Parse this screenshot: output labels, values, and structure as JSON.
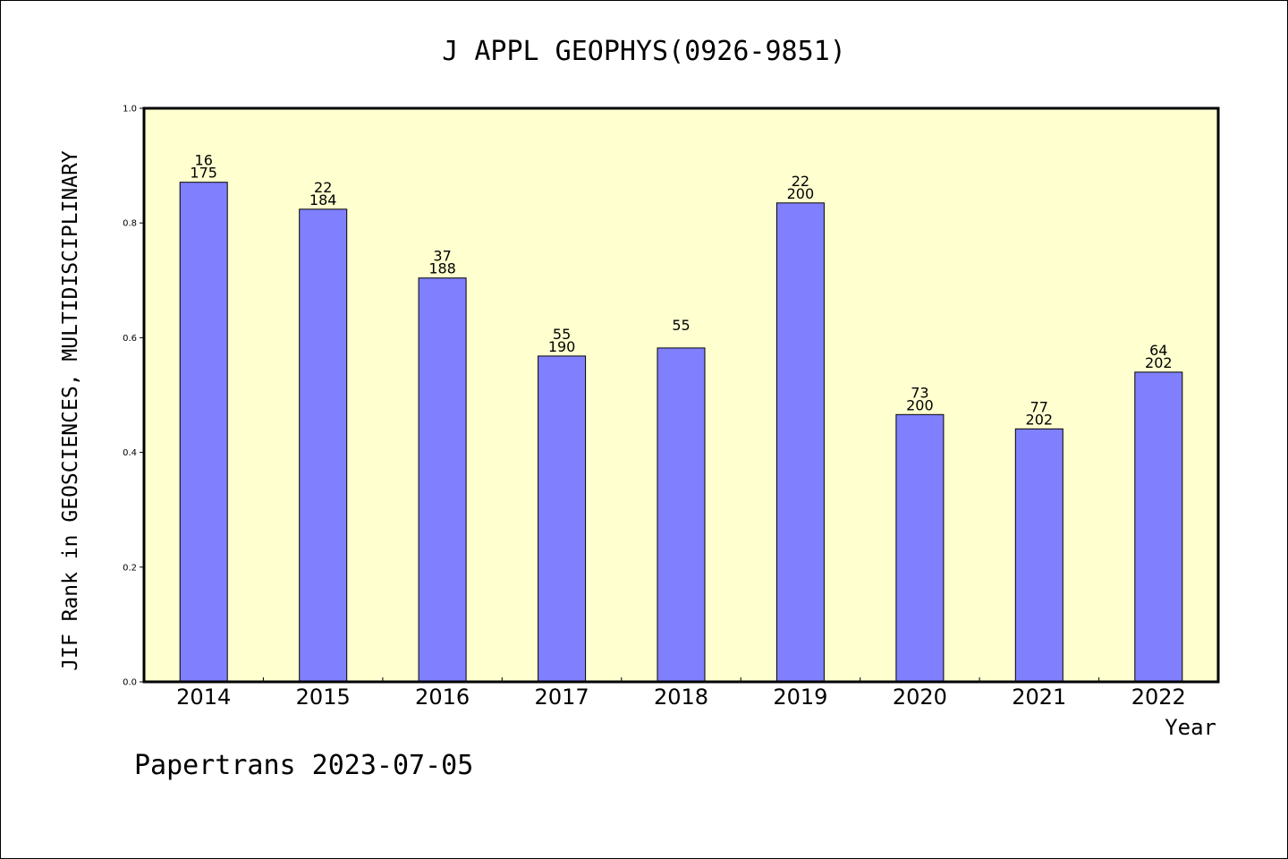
{
  "chart_data": {
    "type": "bar",
    "title": "J APPL GEOPHYS(0926-9851)",
    "xlabel": "Year",
    "ylabel": "JIF Rank in GEOSCIENCES, MULTIDISCIPLINARY",
    "ylim": [
      0,
      1
    ],
    "yticks": [
      "0.0",
      "0.2",
      "0.4",
      "0.6",
      "0.8",
      "1.0"
    ],
    "grid": false,
    "categories": [
      "2014",
      "2015",
      "2016",
      "2017",
      "2018",
      "2019",
      "2020",
      "2021",
      "2022"
    ],
    "values": [
      0.871,
      0.824,
      0.704,
      0.568,
      0.582,
      0.835,
      0.466,
      0.441,
      0.54
    ],
    "rank": [
      "16",
      "22",
      "37",
      "55",
      "55",
      "22",
      "73",
      "77",
      "64"
    ],
    "total": [
      "175",
      "184",
      "188",
      "190",
      "",
      "200",
      "200",
      "202",
      "202"
    ],
    "colors": {
      "plot_background": "#ffffd0",
      "bar_fill": "#8080ff",
      "bar_stroke": "#000000"
    }
  },
  "footer": "Papertrans 2023-07-05"
}
